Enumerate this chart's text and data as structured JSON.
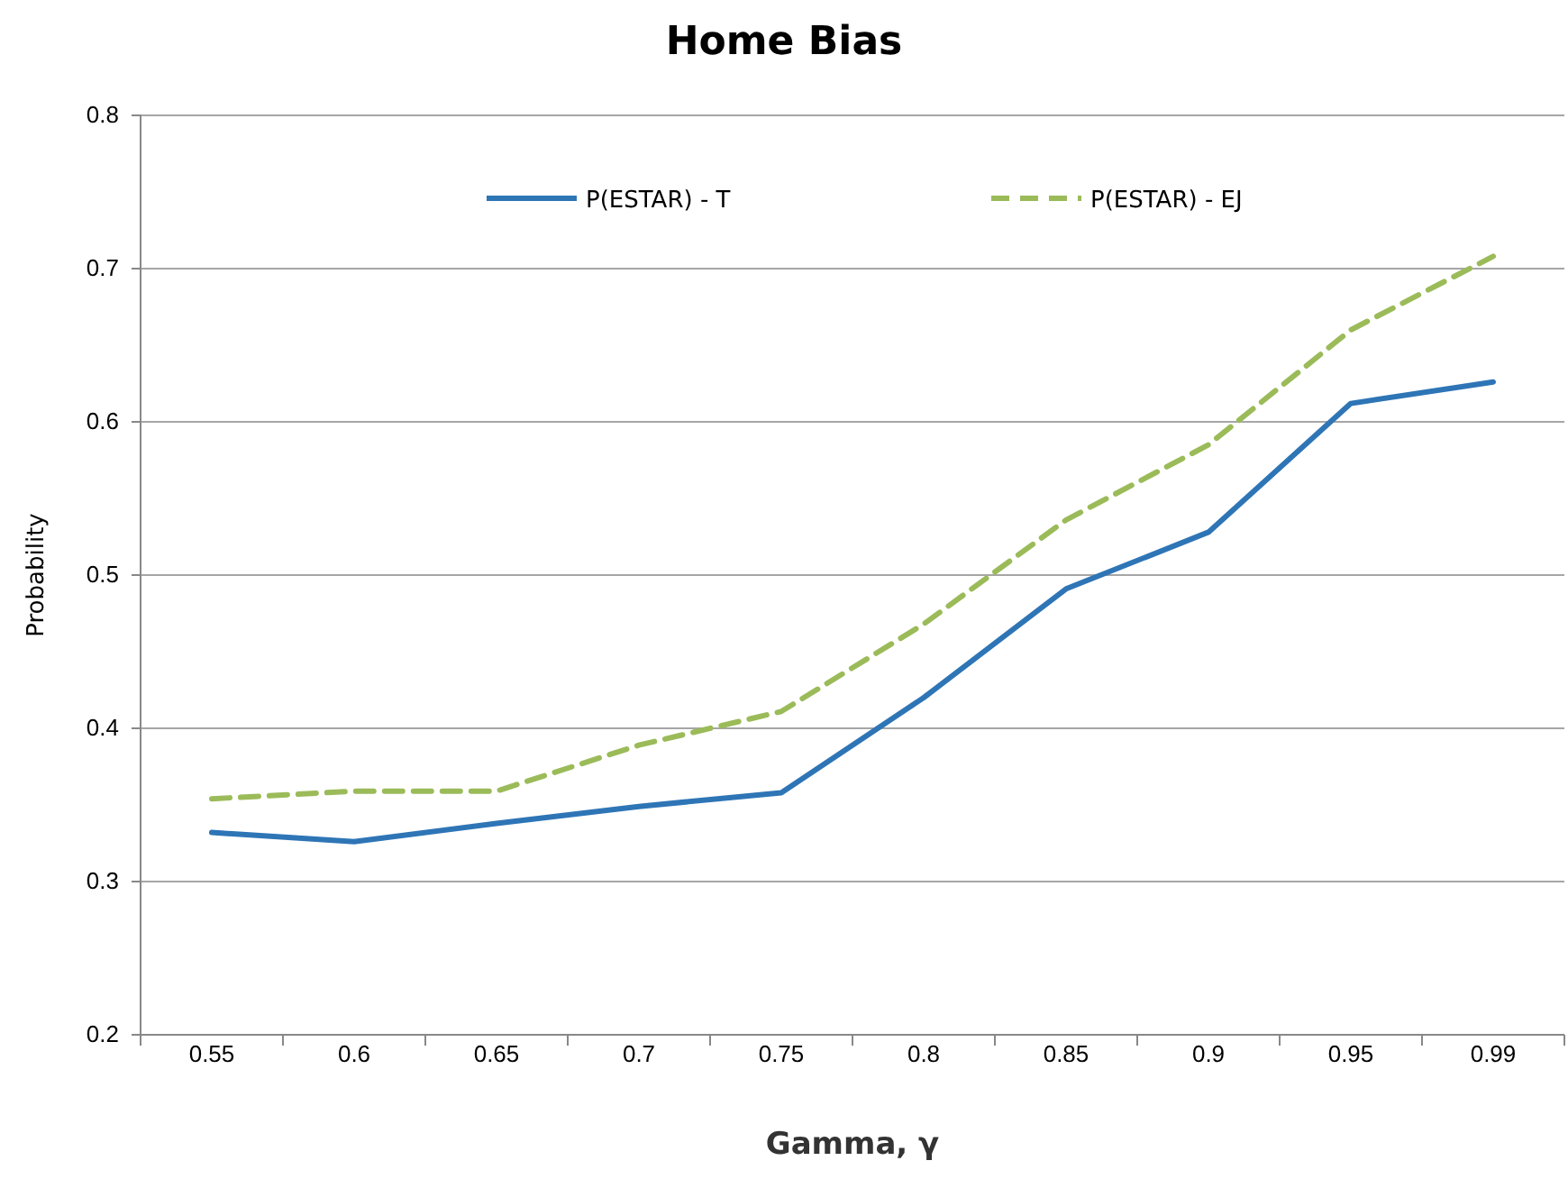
{
  "chart_data": {
    "type": "line",
    "title": "Home Bias",
    "xlabel": "Gamma, γ",
    "ylabel": "Probability",
    "categories": [
      "0.55",
      "0.6",
      "0.65",
      "0.7",
      "0.75",
      "0.8",
      "0.85",
      "0.9",
      "0.95",
      "0.99"
    ],
    "series": [
      {
        "name": "P(ESTAR) - T",
        "color": "#2e75b6",
        "line_style": "solid",
        "values": [
          0.332,
          0.326,
          0.338,
          0.349,
          0.358,
          0.42,
          0.491,
          0.528,
          0.612,
          0.626
        ]
      },
      {
        "name": "P(ESTAR) - EJ",
        "color": "#9bbb59",
        "line_style": "dashed",
        "values": [
          0.354,
          0.359,
          0.359,
          0.389,
          0.411,
          0.468,
          0.536,
          0.585,
          0.66,
          0.708
        ]
      }
    ],
    "ylim": [
      0.2,
      0.8
    ],
    "yticks": [
      0.2,
      0.3,
      0.4,
      0.5,
      0.6,
      0.7,
      0.8
    ],
    "grid": "y",
    "legend": "top",
    "marker": "none"
  }
}
